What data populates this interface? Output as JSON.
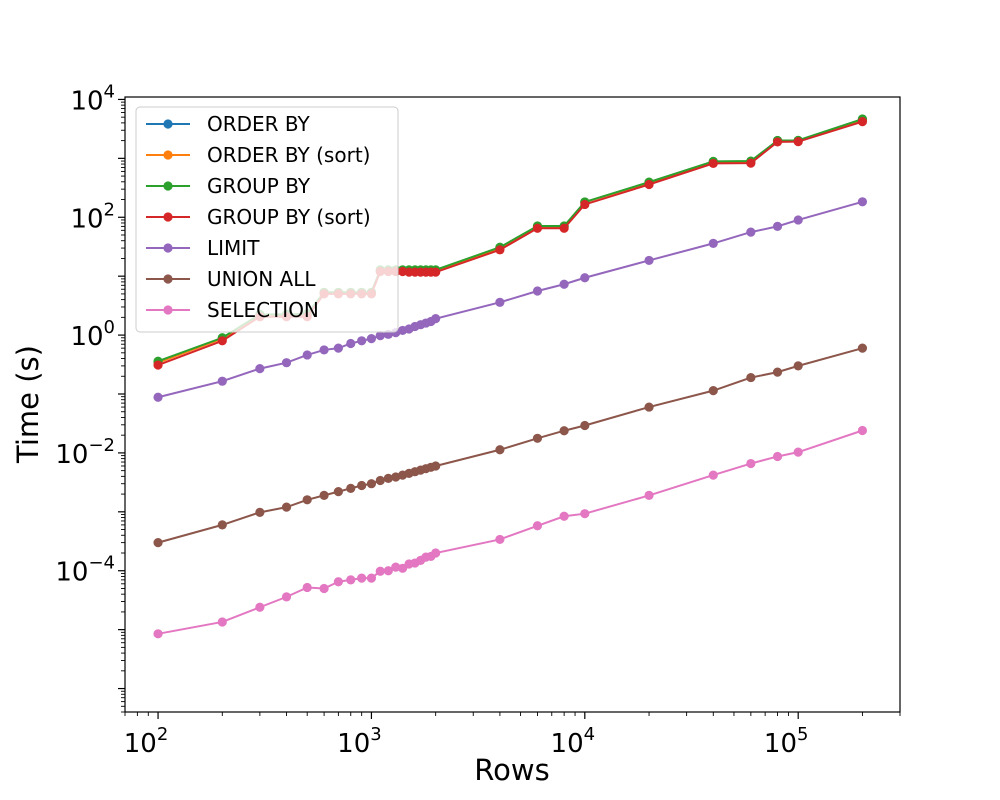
{
  "chart_data": {
    "type": "line",
    "title": "",
    "xlabel": "Rows",
    "ylabel": "Time (s)",
    "xscale": "log",
    "yscale": "log",
    "xlim": [
      70,
      300000
    ],
    "ylim": [
      4e-07,
      11000
    ],
    "x_ticks": [
      {
        "base": "10",
        "exp": "2",
        "value": 100
      },
      {
        "base": "10",
        "exp": "3",
        "value": 1000
      },
      {
        "base": "10",
        "exp": "4",
        "value": 10000
      },
      {
        "base": "10",
        "exp": "5",
        "value": 100000
      }
    ],
    "y_ticks": [
      {
        "base": "10",
        "exp": "−4",
        "value": 0.0001
      },
      {
        "base": "10",
        "exp": "−2",
        "value": 0.01
      },
      {
        "base": "10",
        "exp": "0",
        "value": 1
      },
      {
        "base": "10",
        "exp": "2",
        "value": 100
      },
      {
        "base": "10",
        "exp": "4",
        "value": 10000
      }
    ],
    "grid": false,
    "legend_position": "top-left",
    "x": [
      100,
      200,
      300,
      400,
      500,
      600,
      700,
      800,
      900,
      1000,
      1100,
      1200,
      1300,
      1400,
      1500,
      1600,
      1700,
      1800,
      1900,
      2000,
      4000,
      6000,
      8000,
      10000,
      20000,
      40000,
      60000,
      80000,
      100000,
      200000
    ],
    "series": [
      {
        "name": "ORDER BY",
        "color": "#1f77b4",
        "values": [
          0.35,
          0.88,
          2.2,
          2.2,
          2.2,
          5.3,
          5.3,
          5.3,
          5.3,
          5.3,
          12.5,
          12.5,
          12.5,
          12.5,
          12.5,
          12.5,
          12.5,
          12.5,
          12.5,
          12.5,
          30,
          70,
          70,
          180,
          390,
          880,
          890,
          2000,
          2000,
          4600
        ]
      },
      {
        "name": "ORDER BY (sort)",
        "color": "#ff7f0e",
        "values": [
          0.34,
          0.87,
          2.2,
          2.2,
          2.2,
          5.3,
          5.3,
          5.3,
          5.3,
          5.3,
          12.5,
          12.5,
          12.5,
          12.5,
          12.5,
          12.5,
          12.5,
          12.5,
          12.5,
          12.5,
          30,
          70,
          70,
          180,
          385,
          870,
          880,
          1980,
          1990,
          4550
        ]
      },
      {
        "name": "GROUP BY",
        "color": "#2ca02c",
        "values": [
          0.36,
          0.9,
          2.25,
          2.25,
          2.3,
          5.3,
          5.3,
          5.3,
          5.3,
          5.3,
          12.8,
          12.8,
          12.8,
          12.8,
          12.8,
          12.8,
          12.8,
          12.8,
          12.8,
          12.8,
          31,
          71,
          71,
          182,
          395,
          890,
          900,
          2010,
          2020,
          4650
        ]
      },
      {
        "name": "GROUP BY (sort)",
        "color": "#d62728",
        "values": [
          0.31,
          0.8,
          2.05,
          2.05,
          2.05,
          5.0,
          5.0,
          5.0,
          5.0,
          5.0,
          12.0,
          12.0,
          12.0,
          12.0,
          11.7,
          11.7,
          11.7,
          11.7,
          11.7,
          11.7,
          28,
          65,
          65,
          165,
          360,
          820,
          830,
          1900,
          1920,
          4200
        ]
      },
      {
        "name": "LIMIT",
        "color": "#9467bd",
        "values": [
          0.088,
          0.165,
          0.27,
          0.34,
          0.46,
          0.56,
          0.6,
          0.72,
          0.8,
          0.87,
          0.98,
          1.03,
          1.1,
          1.2,
          1.27,
          1.4,
          1.5,
          1.6,
          1.7,
          1.9,
          3.6,
          5.6,
          7.3,
          9.4,
          18.5,
          36,
          56,
          70,
          90,
          183
        ]
      },
      {
        "name": "UNION ALL",
        "color": "#8c564b",
        "values": [
          0.0003,
          0.0006,
          0.00098,
          0.0012,
          0.0016,
          0.0019,
          0.0022,
          0.0025,
          0.0028,
          0.003,
          0.0034,
          0.0037,
          0.0039,
          0.0042,
          0.0045,
          0.0048,
          0.0051,
          0.0054,
          0.0057,
          0.006,
          0.0113,
          0.0177,
          0.0238,
          0.0292,
          0.06,
          0.114,
          0.19,
          0.235,
          0.3,
          0.6
        ]
      },
      {
        "name": "SELECTION",
        "color": "#e377c2",
        "values": [
          8.5e-06,
          1.35e-05,
          2.4e-05,
          3.6e-05,
          5.2e-05,
          5e-05,
          6.5e-05,
          7e-05,
          7.5e-05,
          7.5e-05,
          9.8e-05,
          0.0001,
          0.000115,
          0.00011,
          0.00013,
          0.000135,
          0.00015,
          0.00017,
          0.000175,
          0.0002,
          0.00034,
          0.00058,
          0.00084,
          0.00093,
          0.0019,
          0.0042,
          0.0066,
          0.0087,
          0.0103,
          0.024
        ]
      }
    ]
  }
}
